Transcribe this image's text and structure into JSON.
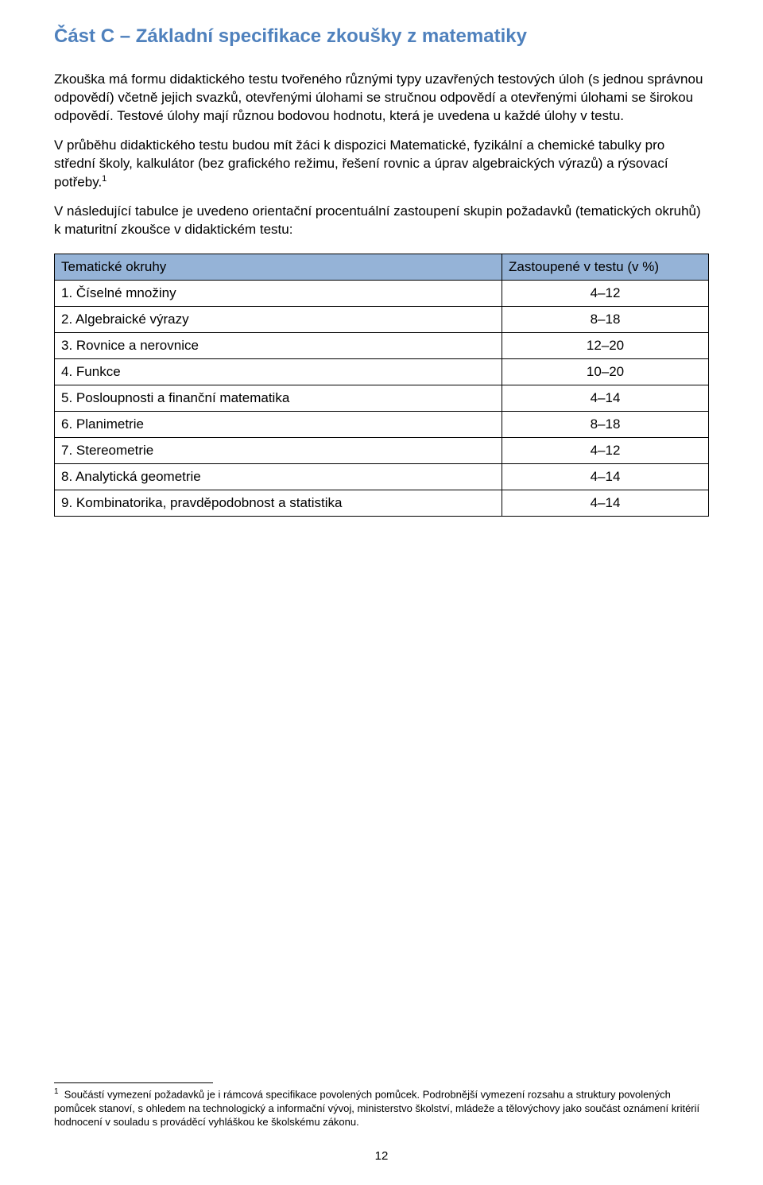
{
  "colors": {
    "heading": "#4f81bd",
    "table_header_bg": "#95b3d7",
    "table_border": "#000000",
    "text": "#000000",
    "background": "#ffffff"
  },
  "typography": {
    "heading_fontsize": 24,
    "body_fontsize": 17,
    "footnote_fontsize": 13,
    "page_number_fontsize": 15,
    "font_family": "Arial"
  },
  "heading": "Část C – Základní specifikace zkoušky z matematiky",
  "paragraphs": {
    "p1": "Zkouška má formu didaktického testu tvořeného různými typy uzavřených testových úloh (s jednou správnou odpovědí) včetně jejich svazků, otevřenými úlohami se stručnou odpovědí a otevřenými úlohami se širokou odpovědí. Testové úlohy mají různou bodovou hodnotu, která je uvedena u každé úlohy v testu.",
    "p2_pre": "V průběhu didaktického testu budou mít žáci k dispozici Matematické, fyzikální a chemické tabulky pro střední školy, kalkulátor (bez grafického režimu, řešení rovnic a úprav algebraických výrazů) a rýsovací potřeby.",
    "p2_ref": "1",
    "p3": "V následující tabulce je uvedeno orientační procentuální zastoupení skupin požadavků (tematických okruhů) k maturitní zkoušce v didaktickém testu:"
  },
  "table": {
    "type": "table",
    "header_bg": "#95b3d7",
    "border_color": "#000000",
    "col2_width": 260,
    "columns": [
      "Tematické okruhy",
      "Zastoupené v testu (v %)"
    ],
    "rows": [
      [
        "1. Číselné množiny",
        "4–12"
      ],
      [
        "2. Algebraické výrazy",
        "8–18"
      ],
      [
        "3. Rovnice a nerovnice",
        "12–20"
      ],
      [
        "4. Funkce",
        "10–20"
      ],
      [
        "5. Posloupnosti a finanční matematika",
        "4–14"
      ],
      [
        "6. Planimetrie",
        "8–18"
      ],
      [
        "7. Stereometrie",
        "4–12"
      ],
      [
        "8. Analytická geometrie",
        "4–14"
      ],
      [
        "9. Kombinatorika, pravděpodobnost a statistika",
        "4–14"
      ]
    ]
  },
  "footnote": {
    "marker": "1",
    "text": "Součástí vymezení požadavků je i rámcová specifikace povolených pomůcek. Podrobnější vymezení rozsahu a struktury povolených pomůcek stanoví, s ohledem na technologický a informační vývoj, ministerstvo školství, mládeže a tělovýchovy jako součást oznámení kritérií hodnocení v souladu s prováděcí vyhláškou ke školskému zákonu."
  },
  "page_number": "12"
}
